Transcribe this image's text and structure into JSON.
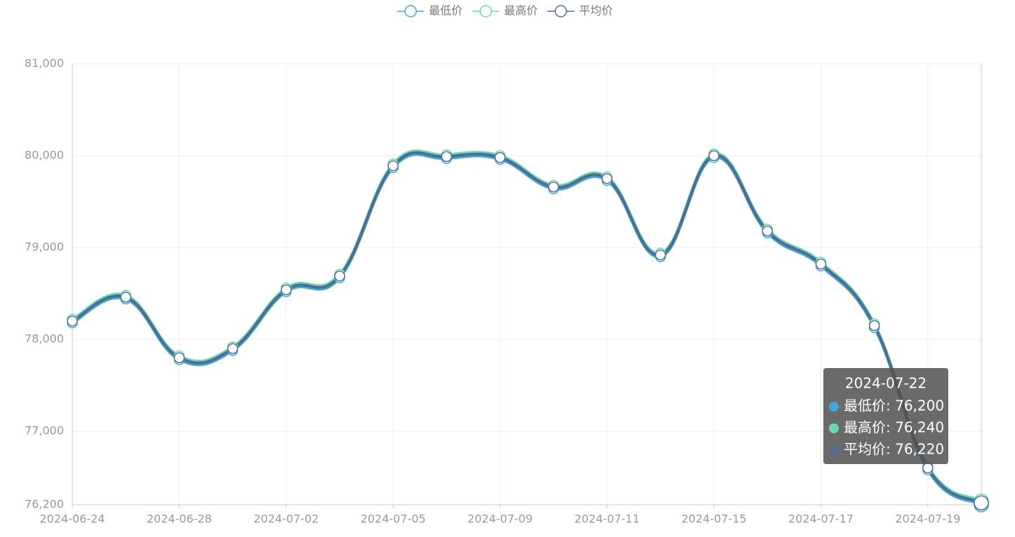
{
  "chart_data": {
    "type": "line",
    "categories": [
      "2024-06-24",
      null,
      "2024-06-28",
      null,
      "2024-07-02",
      null,
      "2024-07-05",
      null,
      "2024-07-09",
      null,
      "2024-07-11",
      null,
      "2024-07-15",
      null,
      "2024-07-17",
      null,
      "2024-07-19",
      null
    ],
    "series": [
      {
        "name": "最低价",
        "color": "#3fa7dc",
        "values": [
          78180,
          78440,
          77780,
          77880,
          78520,
          78670,
          79870,
          79970,
          79960,
          79640,
          79730,
          78900,
          79980,
          79160,
          78800,
          78130,
          76580,
          76200
        ]
      },
      {
        "name": "最高价",
        "color": "#6bd8b5",
        "values": [
          78220,
          78480,
          77820,
          77920,
          78560,
          78710,
          79910,
          80010,
          80000,
          79680,
          79770,
          78940,
          80020,
          79200,
          78840,
          78170,
          76620,
          76240
        ]
      },
      {
        "name": "平均价",
        "color": "#516b91",
        "values": [
          78200,
          78460,
          77800,
          77900,
          78540,
          78690,
          79890,
          79990,
          79980,
          79660,
          79750,
          78920,
          80000,
          79180,
          78820,
          78150,
          76600,
          76220
        ]
      }
    ],
    "ylim": [
      76200,
      81000
    ],
    "yticks": [
      {
        "value": 76200,
        "label": "76,200"
      },
      {
        "value": 77000,
        "label": "77,000"
      },
      {
        "value": 78000,
        "label": "78,000"
      },
      {
        "value": 79000,
        "label": "79,000"
      },
      {
        "value": 80000,
        "label": "80,000"
      },
      {
        "value": 81000,
        "label": "81,000"
      }
    ],
    "grid": true,
    "tooltip": {
      "title": "2024-07-22",
      "lines": [
        "最低价: 76,200",
        "最高价: 76,240",
        "平均价: 76,220"
      ]
    }
  }
}
